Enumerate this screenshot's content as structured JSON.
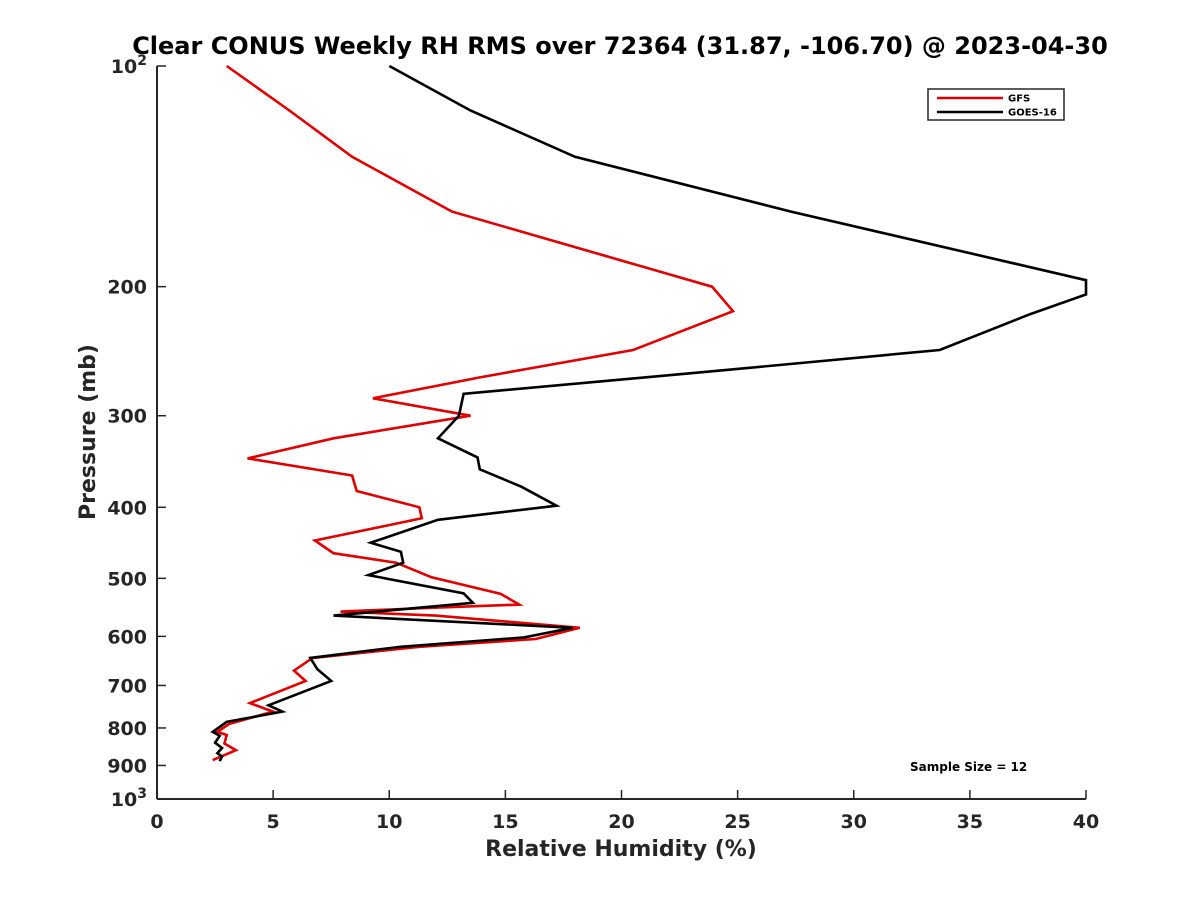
{
  "chart_data": {
    "type": "line",
    "title": "Clear CONUS Weekly RH RMS over 72364 (31.87, -106.70) @ 2023-04-30",
    "xlabel": "Relative Humidity (%)",
    "ylabel": "Pressure (mb)",
    "xlim": [
      0,
      40
    ],
    "ylim": [
      100,
      1000
    ],
    "y_scale": "log",
    "y_reversed": true,
    "x_ticks": [
      "0",
      "5",
      "10",
      "15",
      "20",
      "25",
      "30",
      "35",
      "40"
    ],
    "y_ticks": [
      {
        "value": 100,
        "label": "10",
        "sup": "2"
      },
      {
        "value": 200,
        "label": "200",
        "sup": ""
      },
      {
        "value": 300,
        "label": "300",
        "sup": ""
      },
      {
        "value": 400,
        "label": "400",
        "sup": ""
      },
      {
        "value": 500,
        "label": "500",
        "sup": ""
      },
      {
        "value": 600,
        "label": "600",
        "sup": ""
      },
      {
        "value": 700,
        "label": "700",
        "sup": ""
      },
      {
        "value": 800,
        "label": "800",
        "sup": ""
      },
      {
        "value": 900,
        "label": "900",
        "sup": ""
      },
      {
        "value": 1000,
        "label": "10",
        "sup": "3"
      }
    ],
    "legend_position": "top-right",
    "annotation": "Sample Size = 12",
    "series": [
      {
        "name": "GFS",
        "color": "#e00000",
        "points": [
          [
            3.0,
            100
          ],
          [
            5.7,
            115
          ],
          [
            8.4,
            133
          ],
          [
            12.7,
            158
          ],
          [
            23.9,
            200
          ],
          [
            24.8,
            216
          ],
          [
            20.5,
            244
          ],
          [
            13.9,
            266
          ],
          [
            9.3,
            284
          ],
          [
            13.5,
            300
          ],
          [
            7.6,
            322
          ],
          [
            3.9,
            343
          ],
          [
            8.4,
            362
          ],
          [
            8.6,
            380
          ],
          [
            11.3,
            400
          ],
          [
            11.4,
            414
          ],
          [
            6.8,
            444
          ],
          [
            7.6,
            462
          ],
          [
            10.3,
            476
          ],
          [
            11.8,
            498
          ],
          [
            14.8,
            525
          ],
          [
            15.6,
            543
          ],
          [
            11.5,
            549
          ],
          [
            7.9,
            555
          ],
          [
            12.0,
            562
          ],
          [
            18.2,
            584
          ],
          [
            16.3,
            605
          ],
          [
            11.3,
            620
          ],
          [
            6.7,
            642
          ],
          [
            5.9,
            668
          ],
          [
            6.4,
            690
          ],
          [
            4.0,
            740
          ],
          [
            5.0,
            760
          ],
          [
            3.1,
            790
          ],
          [
            2.6,
            810
          ],
          [
            3.0,
            818
          ],
          [
            2.9,
            840
          ],
          [
            3.4,
            858
          ],
          [
            2.4,
            885
          ]
        ]
      },
      {
        "name": "GOES-16",
        "color": "#000000",
        "points": [
          [
            10.0,
            100
          ],
          [
            13.5,
            115
          ],
          [
            18.0,
            133
          ],
          [
            27.3,
            158
          ],
          [
            36.6,
            185
          ],
          [
            40.0,
            196
          ],
          [
            40.0,
            205
          ],
          [
            37.6,
            218
          ],
          [
            33.7,
            244
          ],
          [
            23.3,
            262
          ],
          [
            13.2,
            280
          ],
          [
            13.0,
            300
          ],
          [
            12.1,
            322
          ],
          [
            13.8,
            342
          ],
          [
            13.9,
            355
          ],
          [
            15.7,
            375
          ],
          [
            17.2,
            398
          ],
          [
            12.1,
            416
          ],
          [
            9.2,
            447
          ],
          [
            10.5,
            460
          ],
          [
            10.6,
            476
          ],
          [
            9.1,
            495
          ],
          [
            13.2,
            524
          ],
          [
            13.6,
            540
          ],
          [
            7.6,
            562
          ],
          [
            17.9,
            584
          ],
          [
            15.8,
            602
          ],
          [
            10.5,
            620
          ],
          [
            6.6,
            642
          ],
          [
            6.9,
            665
          ],
          [
            7.5,
            690
          ],
          [
            4.8,
            745
          ],
          [
            5.4,
            760
          ],
          [
            3.0,
            785
          ],
          [
            2.4,
            810
          ],
          [
            2.7,
            820
          ],
          [
            2.5,
            838
          ],
          [
            2.8,
            852
          ],
          [
            2.6,
            866
          ],
          [
            2.8,
            875
          ],
          [
            2.7,
            888
          ]
        ]
      }
    ]
  }
}
